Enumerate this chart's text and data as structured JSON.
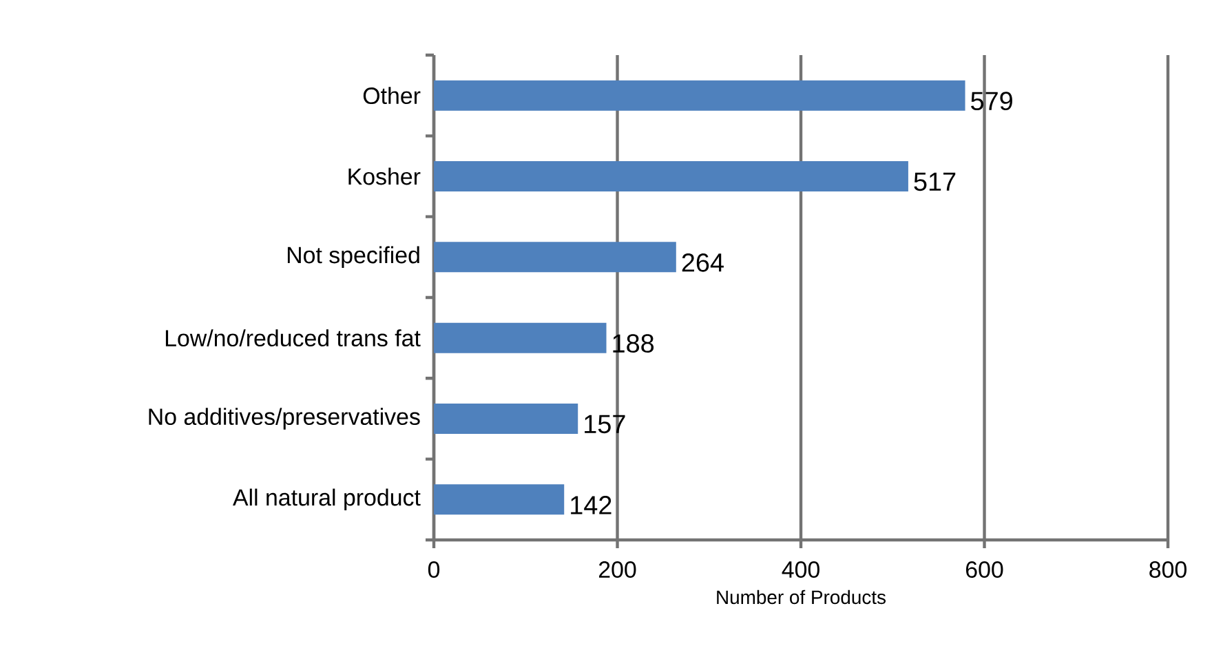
{
  "chart_data": {
    "type": "bar",
    "orientation": "horizontal",
    "categories": [
      "Other",
      "Kosher",
      "Not specified",
      "Low/no/reduced trans fat",
      "No additives/preservatives",
      "All natural product"
    ],
    "values": [
      579,
      517,
      264,
      188,
      157,
      142
    ],
    "color": "#4f81bd",
    "xlabel": "Number of Products",
    "xlim": [
      0,
      800
    ],
    "xticks": [
      0,
      200,
      400,
      600,
      800
    ],
    "grid": "x",
    "data_labels": true
  }
}
